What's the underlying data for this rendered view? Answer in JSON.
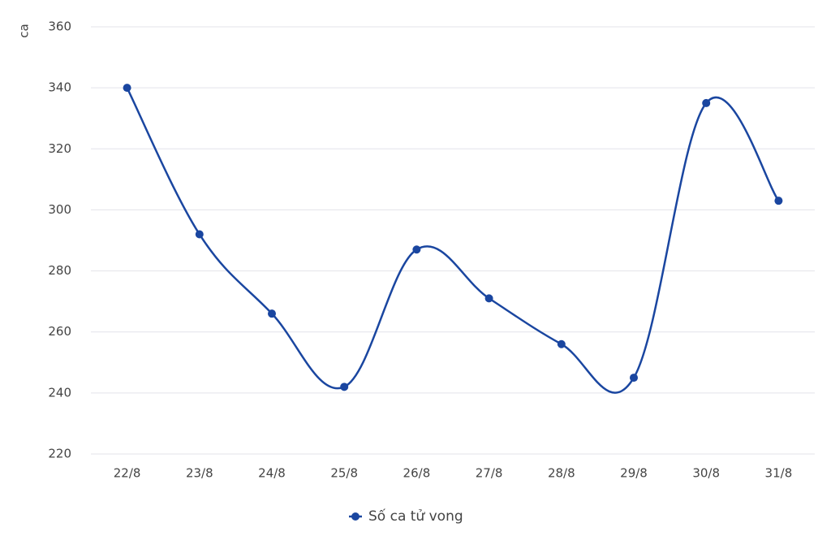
{
  "chart_data": {
    "type": "line",
    "y_label": "ca",
    "categories": [
      "22/8",
      "23/8",
      "24/8",
      "25/8",
      "26/8",
      "27/8",
      "28/8",
      "29/8",
      "30/8",
      "31/8"
    ],
    "series": [
      {
        "name": "Số ca tử vong",
        "color": "#1a46a0",
        "values": [
          340,
          292,
          266,
          242,
          287,
          271,
          256,
          245,
          335,
          303
        ]
      }
    ],
    "ylim": [
      220,
      360
    ],
    "yticks": [
      220,
      240,
      260,
      280,
      300,
      320,
      340,
      360
    ],
    "grid": true,
    "legend": "bottom"
  }
}
